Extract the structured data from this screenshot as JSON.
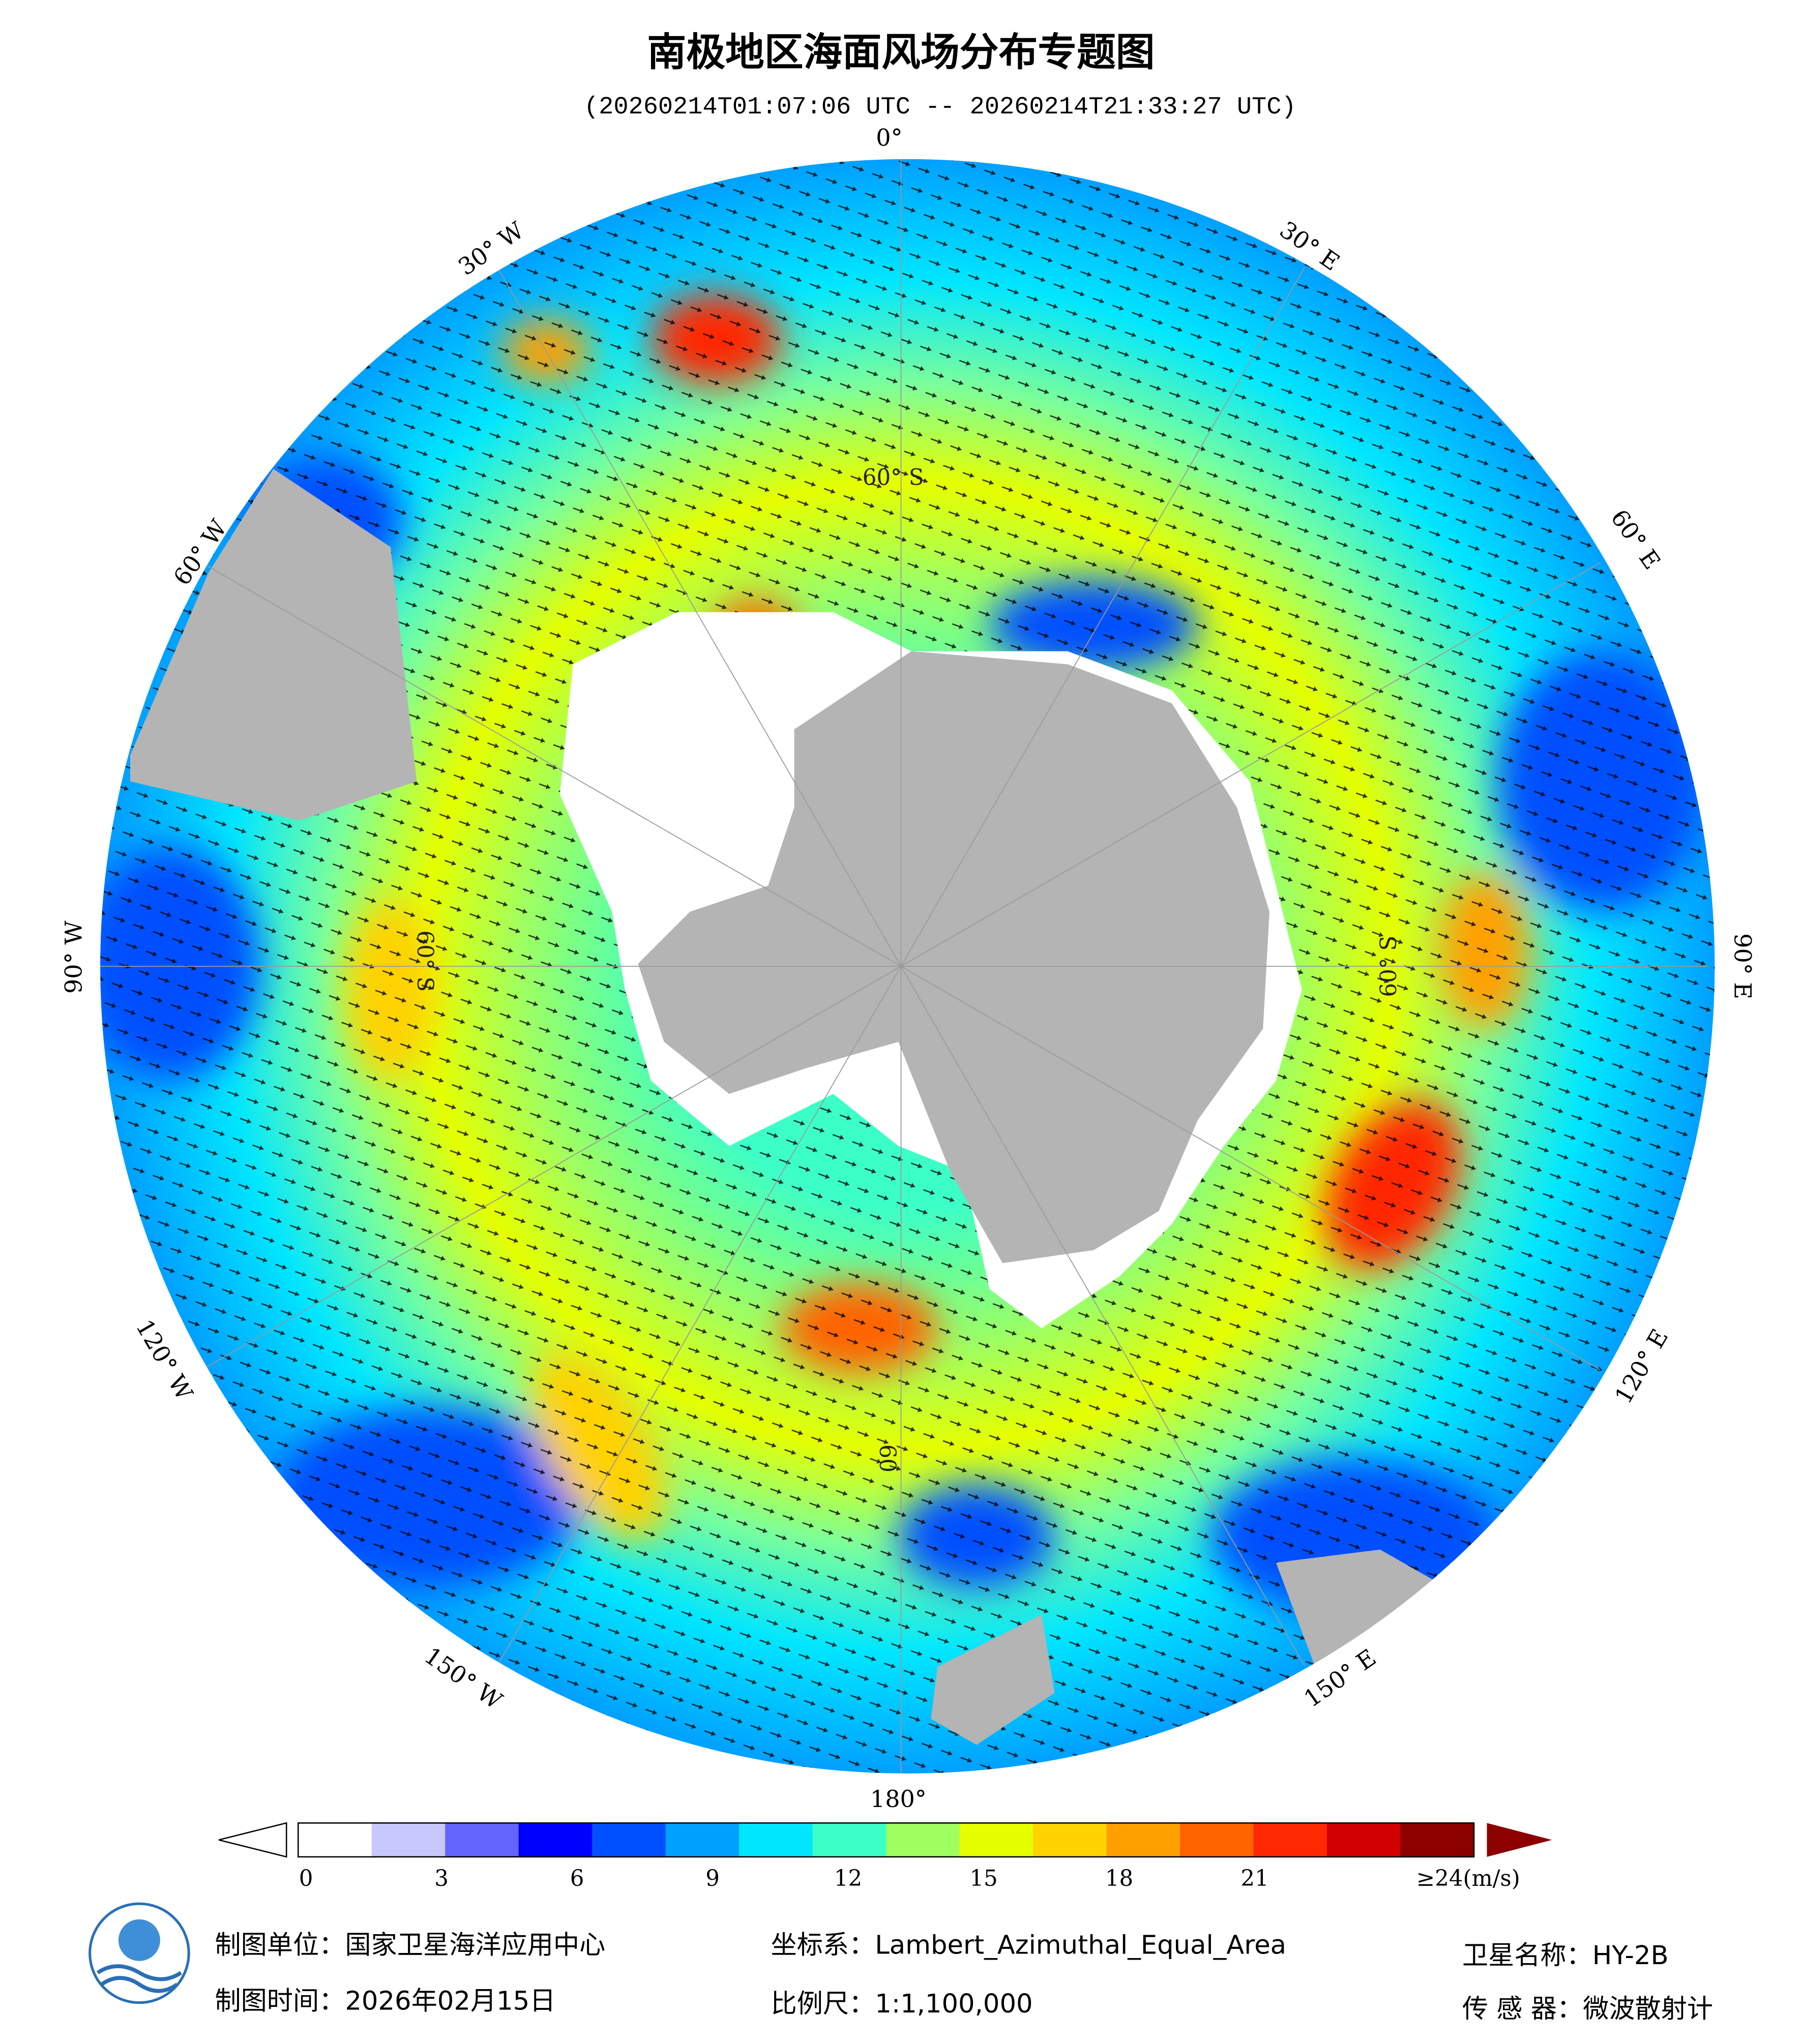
{
  "header": {
    "title": "南极地区海面风场分布专题图",
    "subtitle": "(20260214T01:07:06 UTC -- 20260214T21:33:27 UTC)"
  },
  "map": {
    "lon_labels": [
      "0°",
      "30° E",
      "60° E",
      "90° E",
      "120° E",
      "150° E",
      "180°",
      "150° W",
      "120° W",
      "90° W",
      "60° W",
      "30° W"
    ],
    "lat_labels": [
      "60° S",
      "60° S",
      "60° S",
      "60"
    ]
  },
  "colorbar": {
    "ticks": [
      0,
      3,
      6,
      9,
      12,
      15,
      18,
      21,
      {
        "value": 24,
        "label": "≥24(m/s)"
      }
    ],
    "colors": [
      "#ffffff",
      "#c8c8ff",
      "#6464ff",
      "#0000ff",
      "#0050ff",
      "#00a0ff",
      "#00e6ff",
      "#3cffc8",
      "#a0ff60",
      "#e6ff00",
      "#ffd200",
      "#ffa000",
      "#ff6400",
      "#ff2800",
      "#d20000",
      "#8c0000"
    ]
  },
  "footer": {
    "unit": "制图单位：国家卫星海洋应用中心",
    "date": "制图时间：2026年02月15日",
    "crs": "坐标系：Lambert_Azimuthal_Equal_Area",
    "scale": "比例尺：1:1,100,000",
    "satellite": "卫星名称：HY-2B",
    "sensor": "传 感 器：微波散射计"
  }
}
